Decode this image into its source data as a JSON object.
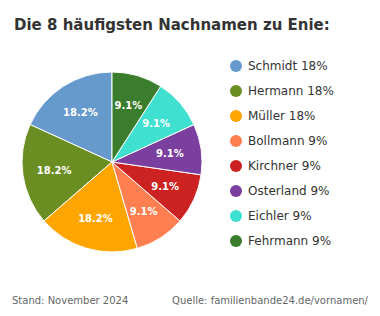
{
  "chart_data": {
    "type": "pie",
    "title": "Die 8 häufigsten Nachnamen zu Enie:",
    "categories": [
      "Schmidt 18%",
      "Hermann 18%",
      "Müller 18%",
      "Bollmann 9%",
      "Kirchner 9%",
      "Osterland 9%",
      "Eichler 9%",
      "Fehrmann 9%"
    ],
    "values": [
      18.2,
      18.2,
      18.2,
      9.1,
      9.1,
      9.1,
      9.1,
      9.1
    ],
    "value_labels": [
      "18.2%",
      "18.2%",
      "18.2%",
      "9.1%",
      "9.1%",
      "9.1%",
      "9.1%",
      "9.1%"
    ],
    "colors": [
      "#6699cc",
      "#6b8e23",
      "#ffa500",
      "#ff7f50",
      "#cc2222",
      "#7b3fa0",
      "#40e0d0",
      "#3a7d2c"
    ],
    "data_labels": true,
    "legend": "right",
    "annotations": [
      "Stand: November 2024",
      "Quelle: familienbande24.de/vornamen/"
    ]
  }
}
